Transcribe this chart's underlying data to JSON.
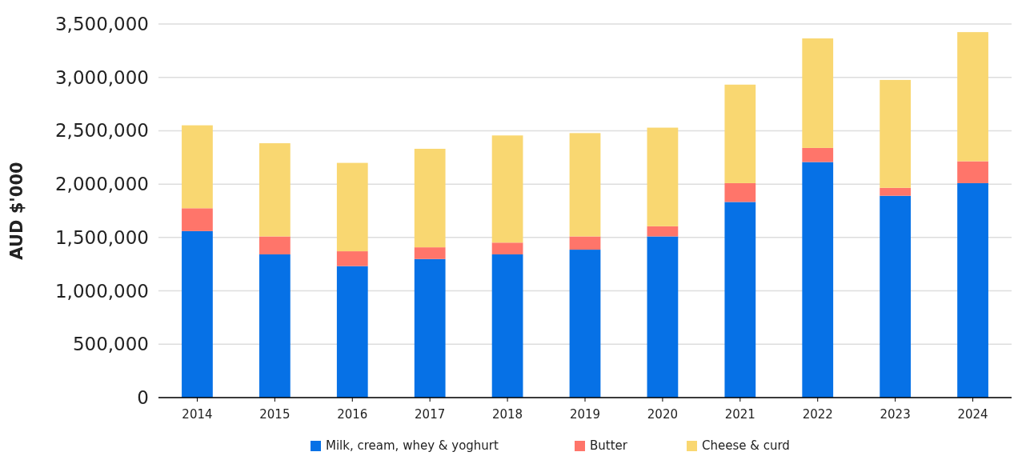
{
  "chart_data": {
    "type": "bar",
    "stacked": true,
    "ylabel": "AUD $'000",
    "categories": [
      "2014",
      "2015",
      "2016",
      "2017",
      "2018",
      "2019",
      "2020",
      "2021",
      "2022",
      "2023",
      "2024"
    ],
    "series": [
      {
        "name": "Milk, cream, whey & yoghurt",
        "color": "#0671e6",
        "values": [
          1560000,
          1342000,
          1232000,
          1298000,
          1342000,
          1386000,
          1510000,
          1833000,
          2207000,
          1891000,
          2009000
        ]
      },
      {
        "name": "Butter",
        "color": "#ff756a",
        "values": [
          214000,
          168000,
          139000,
          110000,
          110000,
          124000,
          95000,
          176000,
          132000,
          74000,
          205000
        ]
      },
      {
        "name": "Cheese & curd",
        "color": "#f9d771",
        "values": [
          777000,
          873000,
          828000,
          923000,
          1004000,
          968000,
          924000,
          923000,
          1026000,
          1011000,
          1210000
        ]
      }
    ],
    "ylim": [
      0,
      3500000
    ],
    "yticks": [
      {
        "value": 0,
        "label": "0"
      },
      {
        "value": 500000,
        "label": "500,000"
      },
      {
        "value": 1000000,
        "label": "1,000,000"
      },
      {
        "value": 1500000,
        "label": "1,500,000"
      },
      {
        "value": 2000000,
        "label": "2,000,000"
      },
      {
        "value": 2500000,
        "label": "2,500,000"
      },
      {
        "value": 3000000,
        "label": "3,000,000"
      },
      {
        "value": 3500000,
        "label": "3,500,000"
      }
    ],
    "grid": "y",
    "legend": "bottom"
  }
}
